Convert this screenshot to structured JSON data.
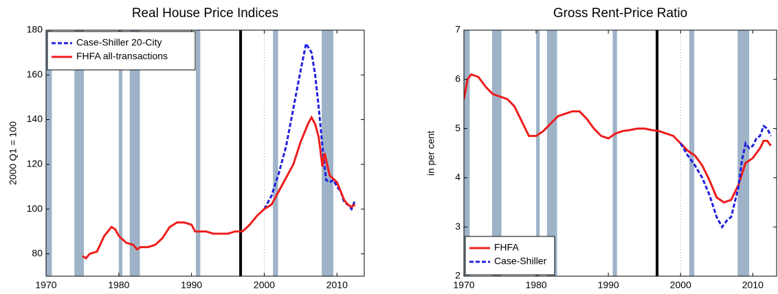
{
  "chart_data": [
    {
      "type": "line",
      "title": "Real House Price Indices",
      "ylabel": "2000 Q1 = 100",
      "xlim": [
        1970,
        2013.75
      ],
      "xticks": [
        1970,
        1980,
        1990,
        2000,
        2010
      ],
      "ylim": [
        70,
        180
      ],
      "yticks": [
        80,
        100,
        120,
        140,
        160,
        180
      ],
      "legend": "upper-left",
      "band_color": "#9eb3c8",
      "bands": [
        [
          1970,
          1970.8
        ],
        [
          1973.9,
          1975.2
        ],
        [
          1980,
          1980.5
        ],
        [
          1981.5,
          1982.9
        ],
        [
          1990.6,
          1991.2
        ],
        [
          2001.2,
          2001.9
        ],
        [
          2007.9,
          2009.5
        ]
      ],
      "vlines": [
        {
          "x": 1996.75,
          "style": "solid"
        },
        {
          "x": 2000,
          "style": "dotted"
        }
      ],
      "series": [
        {
          "name": "Case-Shiller 20-City",
          "color": "#1f1fe0",
          "dash": true,
          "x": [
            2000,
            2001,
            2002,
            2003,
            2004,
            2005,
            2005.75,
            2006.5,
            2007,
            2007.5,
            2008,
            2008.5,
            2009,
            2009.5,
            2010,
            2010.5,
            2011,
            2011.5,
            2012,
            2012.5
          ],
          "values": [
            100,
            106,
            116,
            128,
            145,
            162,
            174,
            170,
            160,
            145,
            128,
            113,
            112,
            113,
            110,
            108,
            103,
            102,
            100,
            104
          ]
        },
        {
          "name": "FHFA all-transactions",
          "color": "#ee1c1c",
          "dash": false,
          "x": [
            1975,
            1975.5,
            1976,
            1977,
            1978,
            1979,
            1979.5,
            1980,
            1981,
            1982,
            1982.5,
            1983,
            1984,
            1985,
            1986,
            1987,
            1988,
            1989,
            1990,
            1990.5,
            1991,
            1992,
            1993,
            1994,
            1995,
            1996,
            1997,
            1998,
            1999,
            2000,
            2001,
            2002,
            2003,
            2004,
            2005,
            2006,
            2006.5,
            2007,
            2007.5,
            2008,
            2008.3,
            2009,
            2010,
            2011,
            2011.5,
            2012,
            2012.5
          ],
          "values": [
            79,
            78,
            80,
            81,
            88,
            92,
            91,
            88,
            85,
            84,
            82,
            83,
            83,
            84,
            87,
            92,
            94,
            94,
            93,
            90,
            90,
            90,
            89,
            89,
            89,
            90,
            90,
            93,
            97,
            100,
            102,
            108,
            114,
            120,
            130,
            138,
            141,
            138,
            132,
            119,
            125,
            115,
            112,
            104,
            102,
            101,
            102
          ]
        }
      ]
    },
    {
      "type": "line",
      "title": "Gross Rent-Price Ratio",
      "ylabel": "in per cent",
      "xlim": [
        1970,
        2013.3
      ],
      "xticks": [
        1970,
        1980,
        1990,
        2000,
        2010
      ],
      "ylim": [
        2,
        7
      ],
      "yticks": [
        2,
        3,
        4,
        5,
        6,
        7
      ],
      "legend": "lower-left",
      "band_color": "#9eb3c8",
      "bands": [
        [
          1970,
          1970.8
        ],
        [
          1973.9,
          1975.2
        ],
        [
          1980,
          1980.5
        ],
        [
          1981.5,
          1982.9
        ],
        [
          1990.6,
          1991.2
        ],
        [
          2001.2,
          2001.9
        ],
        [
          2007.9,
          2009.5
        ]
      ],
      "vlines": [
        {
          "x": 1996.75,
          "style": "solid"
        },
        {
          "x": 2000,
          "style": "dotted"
        }
      ],
      "series": [
        {
          "name": "FHFA",
          "color": "#ee1c1c",
          "dash": false,
          "x": [
            1970,
            1970.5,
            1971,
            1972,
            1973,
            1974,
            1975,
            1976,
            1977,
            1978,
            1979,
            1980,
            1981,
            1982,
            1983,
            1984,
            1985,
            1986,
            1987,
            1988,
            1989,
            1990,
            1991,
            1992,
            1993,
            1994,
            1995,
            1996,
            1997,
            1998,
            1999,
            2000,
            2001,
            2002,
            2003,
            2004,
            2005,
            2006,
            2007,
            2008,
            2009,
            2010,
            2011,
            2011.5,
            2012,
            2012.5
          ],
          "values": [
            5.6,
            6.0,
            6.1,
            6.05,
            5.85,
            5.7,
            5.65,
            5.6,
            5.45,
            5.15,
            4.85,
            4.85,
            4.95,
            5.1,
            5.25,
            5.3,
            5.35,
            5.35,
            5.2,
            5.0,
            4.85,
            4.8,
            4.9,
            4.95,
            4.97,
            5.0,
            5.0,
            4.97,
            4.95,
            4.9,
            4.85,
            4.7,
            4.55,
            4.45,
            4.25,
            3.95,
            3.6,
            3.5,
            3.55,
            3.85,
            4.3,
            4.4,
            4.6,
            4.75,
            4.75,
            4.65
          ]
        },
        {
          "name": "Case-Shiller",
          "color": "#1f1fe0",
          "dash": true,
          "x": [
            2000,
            2001,
            2002,
            2003,
            2004,
            2005,
            2005.75,
            2006.5,
            2007,
            2008,
            2008.5,
            2009,
            2009.5,
            2010,
            2010.5,
            2011,
            2011.5,
            2012,
            2012.5
          ],
          "values": [
            4.7,
            4.45,
            4.25,
            4.0,
            3.65,
            3.2,
            3.0,
            3.15,
            3.2,
            3.8,
            4.35,
            4.7,
            4.6,
            4.65,
            4.8,
            4.85,
            5.05,
            5.0,
            4.85
          ]
        }
      ]
    }
  ]
}
